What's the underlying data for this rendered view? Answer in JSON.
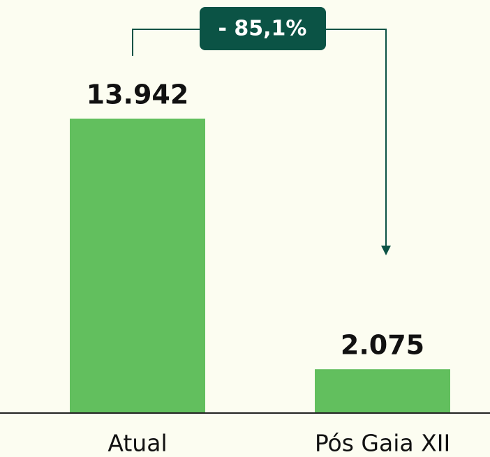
{
  "chart_data": {
    "type": "bar",
    "categories": [
      "Atual",
      "Pós Gaia XII"
    ],
    "values": [
      13942,
      2075
    ],
    "value_labels": [
      "13.942",
      "2.075"
    ],
    "color": "#62bf5e",
    "annotation": "- 85,1%"
  }
}
